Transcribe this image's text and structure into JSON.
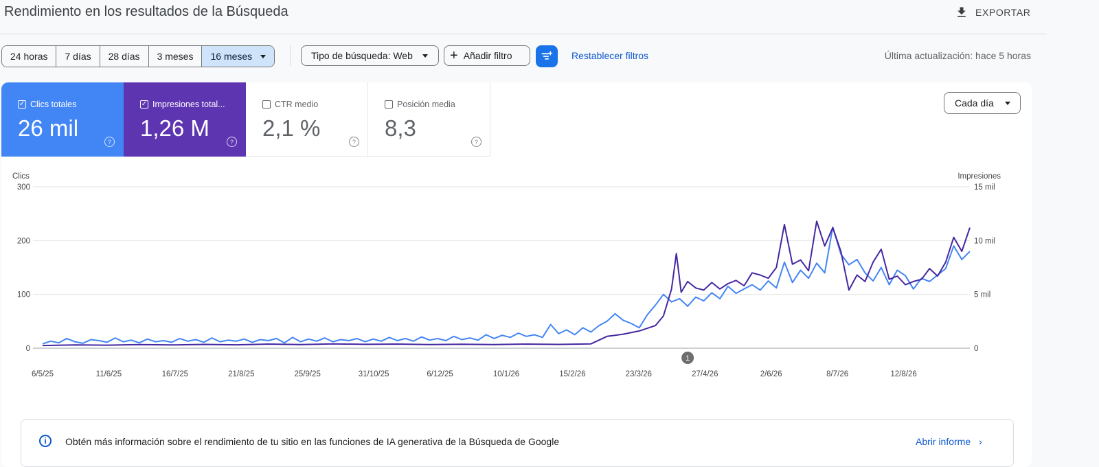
{
  "header": {
    "title": "Rendimiento en los resultados de la Búsqueda",
    "export_label": "EXPORTAR"
  },
  "toolbar": {
    "date_ranges": [
      "24 horas",
      "7 días",
      "28 días",
      "3 meses",
      "16 meses"
    ],
    "selected_range": "16 meses",
    "search_type_label": "Tipo de búsqueda: Web",
    "add_filter_label": "Añadir filtro",
    "reset_filters_label": "Restablecer filtros",
    "last_updated": "Última actualización: hace 5 horas"
  },
  "metrics": [
    {
      "label": "Clics totales",
      "value": "26 mil",
      "checked": true,
      "color": "#4285f4"
    },
    {
      "label": "Impresiones total...",
      "value": "1,26 M",
      "checked": true,
      "color": "#5e35b1"
    },
    {
      "label": "CTR medio",
      "value": "2,1 %",
      "checked": false,
      "color": "#ffffff"
    },
    {
      "label": "Posición media",
      "value": "8,3",
      "checked": false,
      "color": "#ffffff"
    }
  ],
  "granularity": "Cada día",
  "annotation_marker": "1",
  "info": {
    "text": "Obtén más información sobre el rendimiento de tu sitio en las funciones de IA generativa de la Búsqueda de Google",
    "link_label": "Abrir informe"
  },
  "chart_data": {
    "type": "line",
    "xlabel": "",
    "y_left_label": "Clics",
    "y_right_label": "Impresiones",
    "y_left_ticks": [
      "0",
      "100",
      "200",
      "300"
    ],
    "y_right_ticks": [
      "0",
      "5 mil",
      "10 mil",
      "15 mil"
    ],
    "ylim_left": [
      0,
      300
    ],
    "ylim_right": [
      0,
      15000
    ],
    "grid": true,
    "x_tick_labels": [
      "6/5/25",
      "11/6/25",
      "16/7/25",
      "21/8/25",
      "25/9/25",
      "31/10/25",
      "6/12/25",
      "10/1/26",
      "15/2/26",
      "23/3/26",
      "27/4/26",
      "2/6/26",
      "8/7/26",
      "12/8/26"
    ],
    "series": [
      {
        "name": "Clics",
        "color": "#4285f4",
        "axis": "left",
        "points": [
          [
            0,
            8
          ],
          [
            5,
            13
          ],
          [
            10,
            10
          ],
          [
            15,
            18
          ],
          [
            20,
            12
          ],
          [
            25,
            9
          ],
          [
            30,
            16
          ],
          [
            35,
            14
          ],
          [
            40,
            11
          ],
          [
            45,
            19
          ],
          [
            50,
            12
          ],
          [
            55,
            15
          ],
          [
            60,
            10
          ],
          [
            65,
            17
          ],
          [
            70,
            12
          ],
          [
            75,
            14
          ],
          [
            80,
            11
          ],
          [
            85,
            18
          ],
          [
            90,
            13
          ],
          [
            95,
            16
          ],
          [
            100,
            11
          ],
          [
            105,
            19
          ],
          [
            110,
            12
          ],
          [
            115,
            15
          ],
          [
            120,
            13
          ],
          [
            125,
            17
          ],
          [
            130,
            11
          ],
          [
            135,
            16
          ],
          [
            140,
            14
          ],
          [
            145,
            18
          ],
          [
            150,
            10
          ],
          [
            155,
            20
          ],
          [
            160,
            12
          ],
          [
            165,
            17
          ],
          [
            170,
            13
          ],
          [
            175,
            19
          ],
          [
            180,
            12
          ],
          [
            185,
            16
          ],
          [
            190,
            14
          ],
          [
            195,
            18
          ],
          [
            200,
            12
          ],
          [
            205,
            17
          ],
          [
            210,
            13
          ],
          [
            215,
            20
          ],
          [
            220,
            14
          ],
          [
            225,
            18
          ],
          [
            230,
            13
          ],
          [
            235,
            21
          ],
          [
            240,
            15
          ],
          [
            245,
            18
          ],
          [
            250,
            14
          ],
          [
            255,
            22
          ],
          [
            260,
            16
          ],
          [
            265,
            19
          ],
          [
            270,
            15
          ],
          [
            275,
            25
          ],
          [
            280,
            18
          ],
          [
            285,
            24
          ],
          [
            290,
            20
          ],
          [
            295,
            28
          ],
          [
            300,
            22
          ],
          [
            305,
            25
          ],
          [
            310,
            20
          ],
          [
            315,
            44
          ],
          [
            320,
            27
          ],
          [
            325,
            34
          ],
          [
            330,
            25
          ],
          [
            335,
            38
          ],
          [
            340,
            30
          ],
          [
            345,
            42
          ],
          [
            350,
            50
          ],
          [
            355,
            64
          ],
          [
            360,
            52
          ],
          [
            365,
            46
          ],
          [
            370,
            38
          ],
          [
            375,
            62
          ],
          [
            380,
            80
          ],
          [
            385,
            100
          ],
          [
            390,
            86
          ],
          [
            395,
            92
          ],
          [
            400,
            78
          ],
          [
            405,
            95
          ],
          [
            410,
            88
          ],
          [
            415,
            103
          ],
          [
            420,
            92
          ],
          [
            425,
            115
          ],
          [
            430,
            102
          ],
          [
            435,
            110
          ],
          [
            440,
            118
          ],
          [
            445,
            108
          ],
          [
            450,
            125
          ],
          [
            455,
            112
          ],
          [
            460,
            160
          ],
          [
            465,
            122
          ],
          [
            470,
            145
          ],
          [
            475,
            130
          ],
          [
            480,
            158
          ],
          [
            485,
            140
          ],
          [
            490,
            225
          ],
          [
            495,
            175
          ],
          [
            500,
            155
          ],
          [
            505,
            165
          ],
          [
            510,
            140
          ],
          [
            515,
            125
          ],
          [
            520,
            150
          ],
          [
            525,
            118
          ],
          [
            530,
            145
          ],
          [
            535,
            135
          ],
          [
            540,
            110
          ],
          [
            545,
            130
          ],
          [
            550,
            124
          ],
          [
            555,
            136
          ],
          [
            560,
            148
          ],
          [
            565,
            190
          ],
          [
            570,
            165
          ],
          [
            575,
            180
          ]
        ]
      },
      {
        "name": "Impresiones",
        "color": "#4527a0",
        "axis": "right",
        "points": [
          [
            0,
            250
          ],
          [
            20,
            300
          ],
          [
            40,
            280
          ],
          [
            60,
            330
          ],
          [
            80,
            300
          ],
          [
            100,
            350
          ],
          [
            120,
            310
          ],
          [
            140,
            380
          ],
          [
            160,
            340
          ],
          [
            180,
            400
          ],
          [
            200,
            360
          ],
          [
            220,
            380
          ],
          [
            240,
            330
          ],
          [
            260,
            370
          ],
          [
            280,
            340
          ],
          [
            300,
            380
          ],
          [
            320,
            350
          ],
          [
            340,
            400
          ],
          [
            350,
            1100
          ],
          [
            360,
            1300
          ],
          [
            370,
            1600
          ],
          [
            380,
            2100
          ],
          [
            385,
            3000
          ],
          [
            390,
            5500
          ],
          [
            393,
            8800
          ],
          [
            396,
            5200
          ],
          [
            400,
            6200
          ],
          [
            405,
            5600
          ],
          [
            410,
            5400
          ],
          [
            415,
            6100
          ],
          [
            420,
            5500
          ],
          [
            425,
            6000
          ],
          [
            430,
            6300
          ],
          [
            435,
            5800
          ],
          [
            440,
            7000
          ],
          [
            445,
            6800
          ],
          [
            450,
            6500
          ],
          [
            455,
            7500
          ],
          [
            460,
            11500
          ],
          [
            465,
            7800
          ],
          [
            470,
            8200
          ],
          [
            475,
            7200
          ],
          [
            480,
            11800
          ],
          [
            485,
            9500
          ],
          [
            490,
            11200
          ],
          [
            495,
            9000
          ],
          [
            500,
            5400
          ],
          [
            505,
            6800
          ],
          [
            510,
            6200
          ],
          [
            515,
            8000
          ],
          [
            520,
            9200
          ],
          [
            525,
            6400
          ],
          [
            530,
            6700
          ],
          [
            535,
            5900
          ],
          [
            540,
            6200
          ],
          [
            545,
            6400
          ],
          [
            550,
            7400
          ],
          [
            555,
            6700
          ],
          [
            560,
            8000
          ],
          [
            565,
            10300
          ],
          [
            570,
            9000
          ],
          [
            575,
            11200
          ]
        ]
      }
    ]
  }
}
